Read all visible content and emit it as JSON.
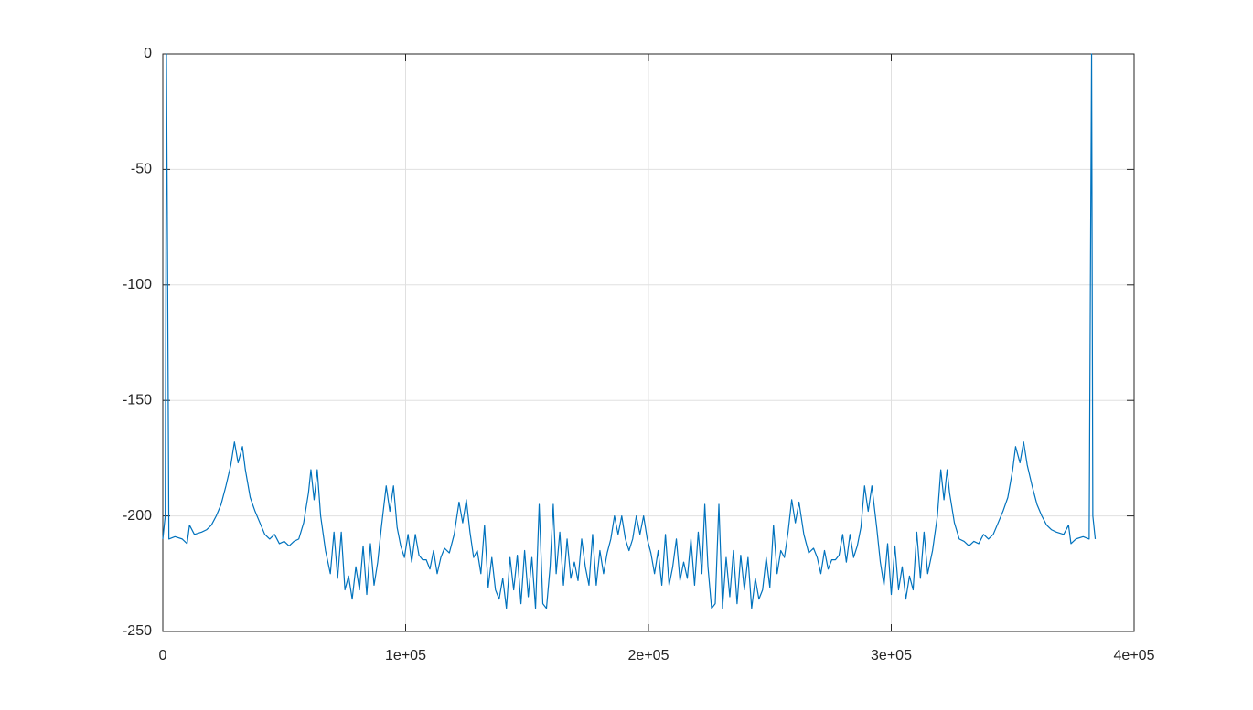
{
  "chart_data": {
    "type": "line",
    "color": "#0072bd",
    "grid": true,
    "xlim": [
      0,
      400000
    ],
    "ylim": [
      -250,
      0
    ],
    "xticks": [
      0,
      {
        "value": 100000,
        "label": "1e+05"
      },
      {
        "value": 200000,
        "label": "2e+05"
      },
      {
        "value": 300000,
        "label": "3e+05"
      },
      {
        "value": 400000,
        "label": "4e+05"
      }
    ],
    "yticks": [
      -250,
      -200,
      -150,
      -100,
      -50,
      0
    ],
    "x": [
      0,
      1000,
      1500,
      2000,
      2500,
      5000,
      8000,
      10000,
      11000,
      13000,
      16000,
      18000,
      20000,
      22000,
      24000,
      26000,
      28000,
      29500,
      31000,
      32800,
      34000,
      36000,
      38000,
      40000,
      42000,
      44000,
      46000,
      48000,
      50000,
      52000,
      54000,
      56000,
      58000,
      60000,
      61000,
      62300,
      63600,
      65000,
      67000,
      69000,
      70500,
      72000,
      73500,
      75000,
      76500,
      78000,
      79500,
      81000,
      82500,
      84000,
      85500,
      87000,
      88500,
      90000,
      92000,
      93500,
      95000,
      96500,
      98000,
      99500,
      101000,
      102500,
      104000,
      105500,
      107000,
      108500,
      110000,
      111500,
      113000,
      114500,
      116000,
      118000,
      120000,
      122000,
      123500,
      125000,
      126500,
      128000,
      129500,
      131000,
      132500,
      134000,
      135500,
      137000,
      138500,
      140000,
      141500,
      143000,
      144500,
      146000,
      147500,
      149000,
      150500,
      152000,
      153500,
      155000,
      156500,
      158000,
      159500,
      160800,
      162000,
      163500,
      165000,
      166500,
      168000,
      169500,
      171000,
      172500,
      174000,
      175500,
      177000,
      178500,
      180000,
      181500,
      183000,
      184500,
      186000,
      187500,
      189000,
      190500,
      192000,
      193500,
      195000,
      196500,
      198000,
      199500,
      201000,
      202500,
      204000,
      205500,
      207000,
      208500,
      210000,
      211500,
      213000,
      214500,
      216000,
      217500,
      219000,
      220500,
      222000,
      223200,
      224500,
      226000,
      227500,
      229000,
      230500,
      232000,
      233500,
      235000,
      236500,
      238000,
      239500,
      241000,
      242500,
      244000,
      245500,
      247000,
      248500,
      250000,
      251500,
      253000,
      254500,
      256000,
      257500,
      259000,
      260500,
      262000,
      264000,
      266000,
      268000,
      269500,
      271000,
      272500,
      274000,
      275500,
      277000,
      278500,
      280000,
      281500,
      283000,
      284500,
      286000,
      287500,
      289000,
      290500,
      292000,
      294000,
      295500,
      297000,
      298500,
      300000,
      301500,
      303000,
      304500,
      306000,
      307500,
      309000,
      310500,
      312000,
      313500,
      315000,
      317000,
      319000,
      320400,
      321700,
      323000,
      324000,
      326000,
      328000,
      330000,
      332000,
      334000,
      336000,
      338000,
      340000,
      342000,
      344000,
      346000,
      348000,
      350000,
      351200,
      353000,
      354500,
      356000,
      358000,
      360000,
      362000,
      364000,
      366000,
      368000,
      371000,
      373000,
      374000,
      376000,
      379000,
      381500,
      382000,
      382500,
      383000,
      384000
    ],
    "values": [
      -210,
      -200,
      0,
      -100,
      -210,
      -209,
      -210,
      -212,
      -204,
      -208,
      -207,
      -206,
      -204,
      -200,
      -195,
      -187,
      -178,
      -168,
      -177,
      -170,
      -180,
      -192,
      -198,
      -203,
      -208,
      -210,
      -208,
      -212,
      -211,
      -213,
      -211,
      -210,
      -203,
      -190,
      -180,
      -193,
      -180,
      -200,
      -215,
      -225,
      -207,
      -227,
      -207,
      -232,
      -226,
      -236,
      -222,
      -232,
      -213,
      -234,
      -212,
      -230,
      -220,
      -205,
      -187,
      -198,
      -187,
      -205,
      -213,
      -218,
      -208,
      -220,
      -208,
      -217,
      -219,
      -219,
      -223,
      -215,
      -225,
      -218,
      -214,
      -216,
      -208,
      -194,
      -203,
      -193,
      -207,
      -218,
      -215,
      -225,
      -204,
      -231,
      -218,
      -232,
      -236,
      -227,
      -240,
      -218,
      -232,
      -217,
      -238,
      -215,
      -235,
      -218,
      -240,
      -195,
      -238,
      -240,
      -222,
      -195,
      -225,
      -207,
      -230,
      -210,
      -227,
      -220,
      -228,
      -210,
      -222,
      -230,
      -208,
      -230,
      -215,
      -225,
      -216,
      -210,
      -200,
      -208,
      -200,
      -210,
      -215,
      -210,
      -200,
      -208,
      -200,
      -210,
      -216,
      -225,
      -215,
      -230,
      -208,
      -230,
      -222,
      -210,
      -228,
      -220,
      -227,
      -210,
      -230,
      -207,
      -225,
      -195,
      -222,
      -240,
      -238,
      -195,
      -240,
      -218,
      -235,
      -215,
      -238,
      -217,
      -232,
      -218,
      -240,
      -227,
      -236,
      -232,
      -218,
      -231,
      -204,
      -225,
      -215,
      -218,
      -207,
      -193,
      -203,
      -194,
      -208,
      -216,
      -214,
      -218,
      -225,
      -215,
      -223,
      -219,
      -219,
      -217,
      -208,
      -220,
      -208,
      -218,
      -213,
      -205,
      -187,
      -198,
      -187,
      -205,
      -220,
      -230,
      -212,
      -234,
      -213,
      -232,
      -222,
      -236,
      -226,
      -232,
      -207,
      -227,
      -207,
      -225,
      -215,
      -200,
      -180,
      -193,
      -180,
      -190,
      -203,
      -210,
      -211,
      -213,
      -211,
      -212,
      -208,
      -210,
      -208,
      -203,
      -198,
      -192,
      -180,
      -170,
      -177,
      -168,
      -178,
      -187,
      -195,
      -200,
      -204,
      -206,
      -207,
      -208,
      -204,
      -212,
      -210,
      -209,
      -210,
      -100,
      0,
      -200,
      -210
    ]
  }
}
